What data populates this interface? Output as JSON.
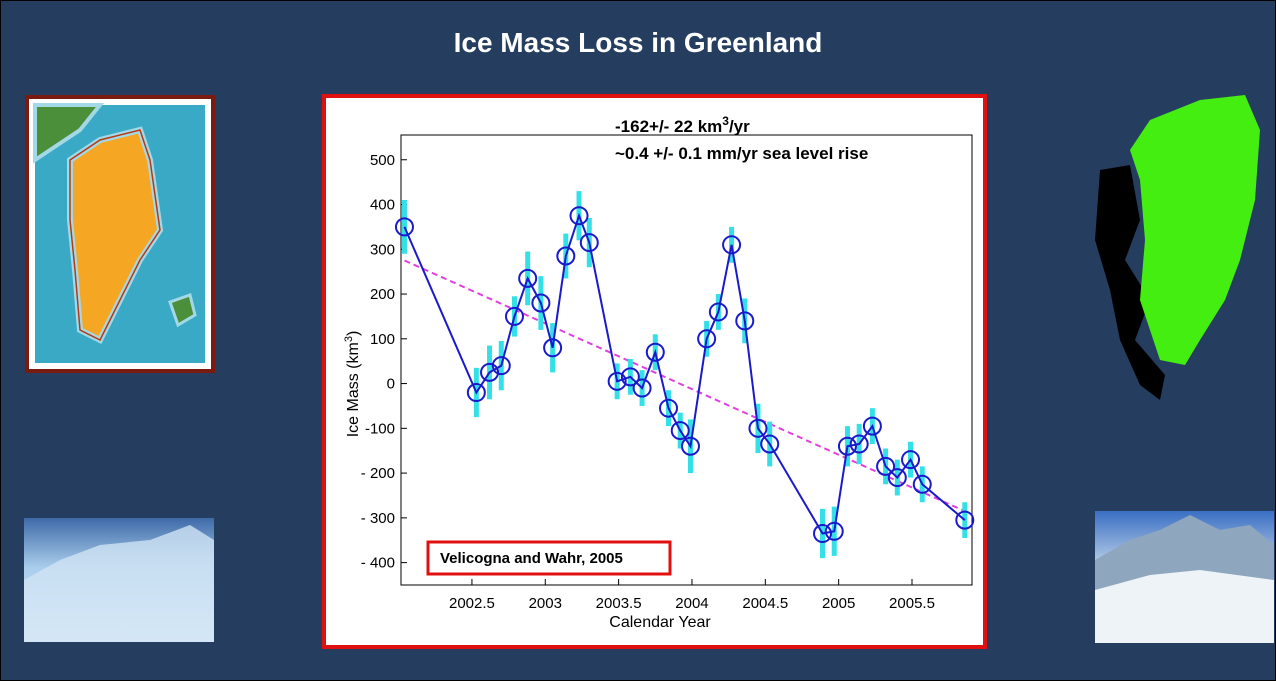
{
  "slide": {
    "title": "Ice Mass Loss in Greenland"
  },
  "chart_data": {
    "type": "line",
    "annotation_line1": {
      "text": "-162+/- 22 km",
      "sup": "3",
      "tail": "/yr"
    },
    "annotation_line2": "~0.4 +/- 0.1 mm/yr sea level rise",
    "citation": "Velicogna and Wahr, 2005",
    "xlabel": "Calendar Year",
    "ylabel": {
      "text": "Ice Mass (km",
      "sup": "3",
      "tail": ")"
    },
    "x": [
      2002.04,
      2002.53,
      2002.62,
      2002.7,
      2002.79,
      2002.88,
      2002.97,
      2003.05,
      2003.14,
      2003.23,
      2003.3,
      2003.49,
      2003.58,
      2003.66,
      2003.75,
      2003.84,
      2003.92,
      2003.99,
      2004.1,
      2004.18,
      2004.27,
      2004.36,
      2004.45,
      2004.53,
      2004.89,
      2004.97,
      2005.06,
      2005.14,
      2005.23,
      2005.32,
      2005.4,
      2005.49,
      2005.57,
      2005.86
    ],
    "values": [
      350,
      -20,
      25,
      40,
      150,
      235,
      180,
      80,
      285,
      375,
      315,
      5,
      15,
      -10,
      70,
      -55,
      -105,
      -140,
      100,
      160,
      310,
      140,
      -100,
      -135,
      -335,
      -330,
      -140,
      -135,
      -95,
      -185,
      -210,
      -170,
      -225,
      -305
    ],
    "errors": [
      60,
      55,
      60,
      55,
      45,
      60,
      60,
      55,
      50,
      55,
      55,
      40,
      40,
      40,
      40,
      40,
      40,
      60,
      40,
      40,
      40,
      50,
      55,
      50,
      55,
      55,
      45,
      45,
      40,
      40,
      40,
      40,
      40,
      40
    ],
    "color": "#1a1acc",
    "error_color": "#33e0e8",
    "trend_line": {
      "x": [
        2002.04,
        2005.86
      ],
      "values": [
        275,
        -285
      ],
      "color": "#e040e0"
    },
    "xlim": [
      2002.0,
      2005.95
    ],
    "xticks": [
      2002.5,
      2003,
      2003.5,
      2004,
      2004.5,
      2005,
      2005.5
    ],
    "ylim": [
      -450,
      600
    ],
    "yticks": [
      {
        "value": -400,
        "label": "- 400"
      },
      {
        "value": -300,
        "label": "- 300"
      },
      {
        "value": -200,
        "label": "- 200"
      },
      {
        "value": -100,
        "label": "-100"
      },
      0,
      100,
      200,
      300,
      400,
      500
    ],
    "grid": false
  }
}
